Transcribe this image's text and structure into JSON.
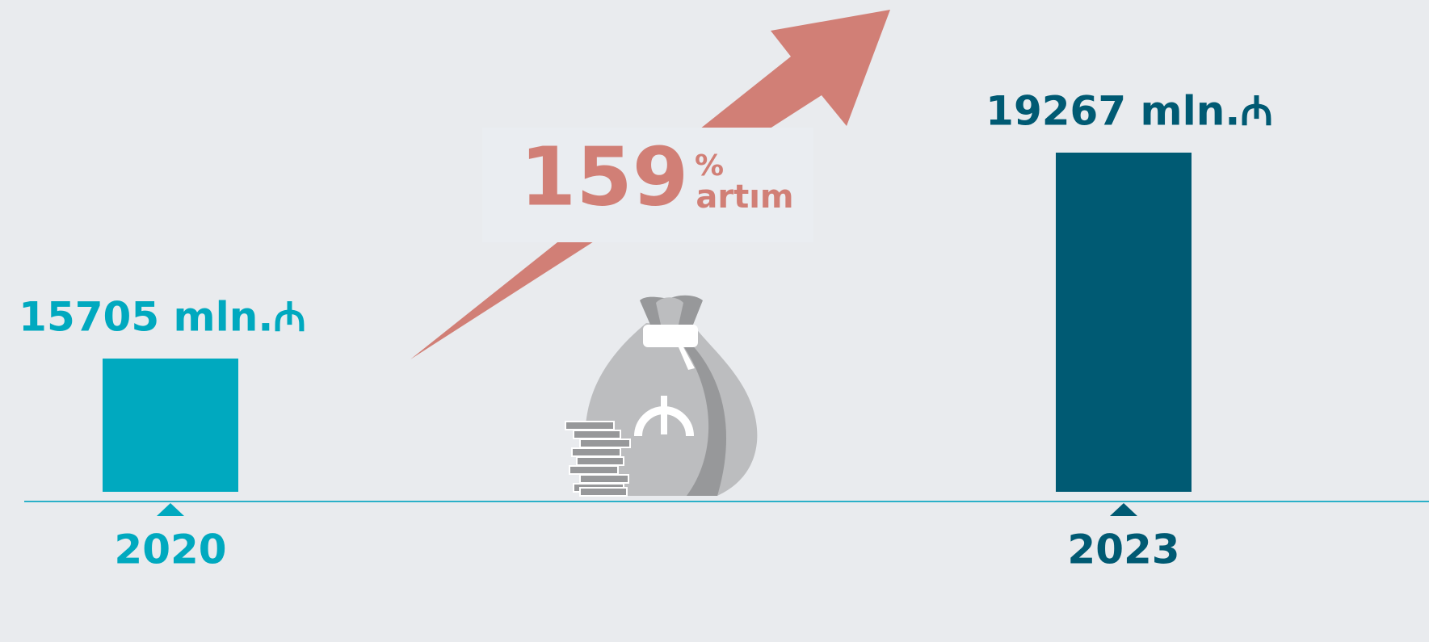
{
  "chart_data": {
    "type": "bar",
    "categories": [
      "2020",
      "2023"
    ],
    "values": [
      15705,
      19267
    ],
    "value_labels": [
      "15705 mln.₼",
      "19267 mln.₼"
    ],
    "colors": [
      "#00a9bf",
      "#005a73"
    ],
    "ylim": [
      13400,
      19700
    ],
    "annotation": {
      "number": "159",
      "unit": "%",
      "text": "artım"
    }
  }
}
